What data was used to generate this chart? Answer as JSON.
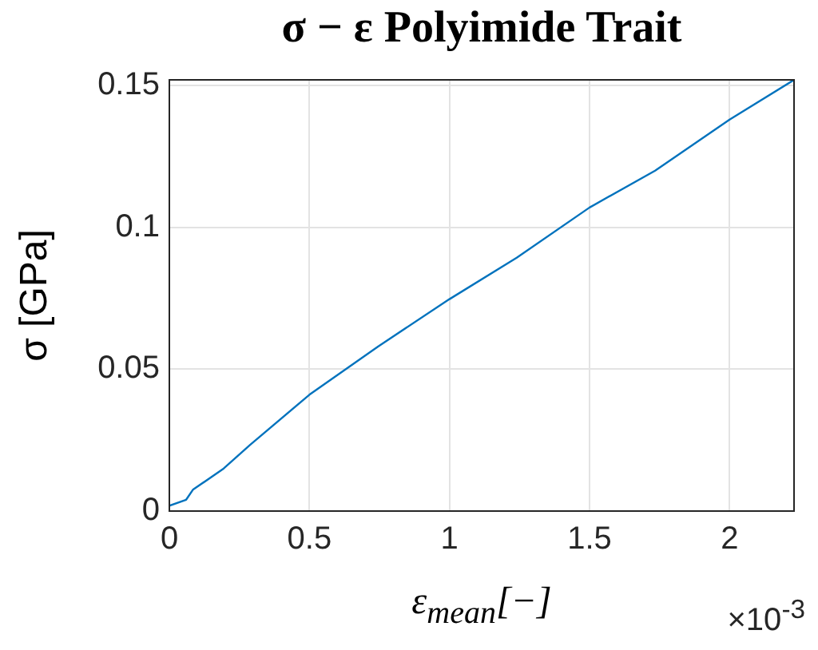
{
  "chart_data": {
    "type": "line",
    "title": "σ − ε Polyimide Trait",
    "xlabel": "ε$_{mean}$[−]",
    "ylabel": "σ [GPa]",
    "annotations": [
      "×10$^{-3}$"
    ],
    "x": [
      0,
      0.06,
      0.084,
      0.194,
      0.289,
      0.5,
      0.745,
      1.0,
      1.24,
      1.5,
      1.734,
      2.0,
      2.23
    ],
    "series": [
      {
        "color": "#0072bd",
        "values": [
          0.0019,
          0.004,
          0.0075,
          0.015,
          0.0234,
          0.041,
          0.058,
          0.0747,
          0.0893,
          0.107,
          0.12,
          0.138,
          0.152
        ]
      }
    ],
    "xlim": [
      0,
      2.23
    ],
    "xticks": [
      0,
      0.5,
      1,
      1.5,
      2
    ],
    "ylim": [
      0,
      0.152
    ],
    "yticks": [
      0,
      0.05,
      0.1,
      0.15
    ],
    "grid": true,
    "marker": "none",
    "line_style": "solid"
  }
}
